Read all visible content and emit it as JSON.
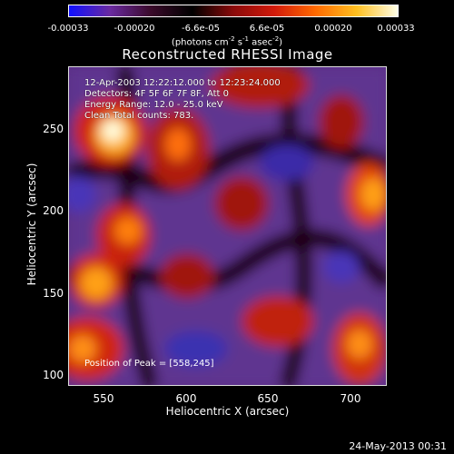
{
  "colorbar": {
    "ticks": [
      "-0.00033",
      "-0.00020",
      "-6.6e-05",
      "6.6e-05",
      "0.00020",
      "0.00033"
    ],
    "units_main": "(photons cm",
    "units_exp1": "-2",
    "units_mid": " s",
    "units_exp2": "-1",
    "units_tail": " asec",
    "units_exp3": "-2",
    "units_close": ")",
    "colors": [
      "#1010ff",
      "#6a2aa0",
      "#3a0a2a",
      "#000000",
      "#8a0a0a",
      "#d21a0a",
      "#ff6a00",
      "#ffc020",
      "#ffffe8"
    ]
  },
  "title": "Reconstructed RHESSI Image",
  "info": {
    "time_range": "12-Apr-2003 12:22:12.000 to 12:23:24.000",
    "detectors": "Detectors: 4F 5F 6F 7F 8F, Att 0",
    "energy": "Energy Range: 12.0 - 25.0 keV",
    "clean": "Clean     Total counts: 783.",
    "peak": "Position of Peak = [558,245]"
  },
  "axes": {
    "xlabel": "Heliocentric X (arcsec)",
    "ylabel": "Heliocentric Y (arcsec)",
    "xticks": [
      "550",
      "600",
      "650",
      "700"
    ],
    "yticks": [
      "250",
      "200",
      "150",
      "100"
    ]
  },
  "timestamp": "24-May-2013 00:31"
}
